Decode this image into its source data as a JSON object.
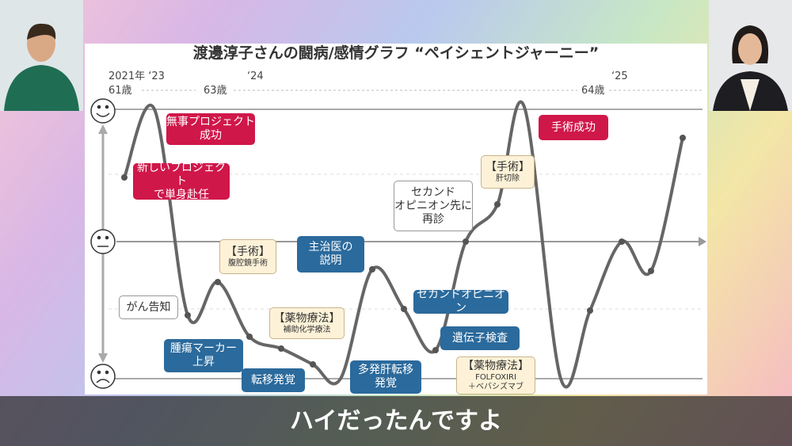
{
  "slide": {
    "title": "渡邊淳子さんの闘病/感情グラフ “ペイシェントジャーニー”",
    "timeline": [
      "2021年 ‘23",
      "61歳",
      "63歳",
      "‘24",
      "64歳",
      "‘25"
    ],
    "annotations": [
      {
        "lines": [
          "無事プロジェクト",
          "成功"
        ]
      },
      {
        "lines": [
          "新しいプロジェクト",
          "で単身赴任"
        ]
      },
      {
        "lines": [
          "【手術】",
          "腹腔鏡手術"
        ]
      },
      {
        "lines": [
          "がん告知"
        ]
      },
      {
        "lines": [
          "【薬物療法】",
          "補助化学療法"
        ]
      },
      {
        "lines": [
          "腫瘍マーカー",
          "上昇"
        ]
      },
      {
        "lines": [
          "転移発覚"
        ]
      },
      {
        "lines": [
          "主治医の",
          "説明"
        ]
      },
      {
        "lines": [
          "多発肝転移",
          "発覚"
        ]
      },
      {
        "lines": [
          "セカンドオピニオン"
        ]
      },
      {
        "lines": [
          "遺伝子検査"
        ]
      },
      {
        "lines": [
          "【薬物療法】",
          "FOLFOXIRI",
          "＋ベバシズマブ"
        ]
      },
      {
        "lines": [
          "セカンド",
          "オピニオン先に",
          "再診"
        ]
      },
      {
        "lines": [
          "【手術】",
          "肝切除"
        ]
      },
      {
        "lines": [
          "手術成功"
        ]
      }
    ]
  },
  "caption": "ハイだったんですよ"
}
